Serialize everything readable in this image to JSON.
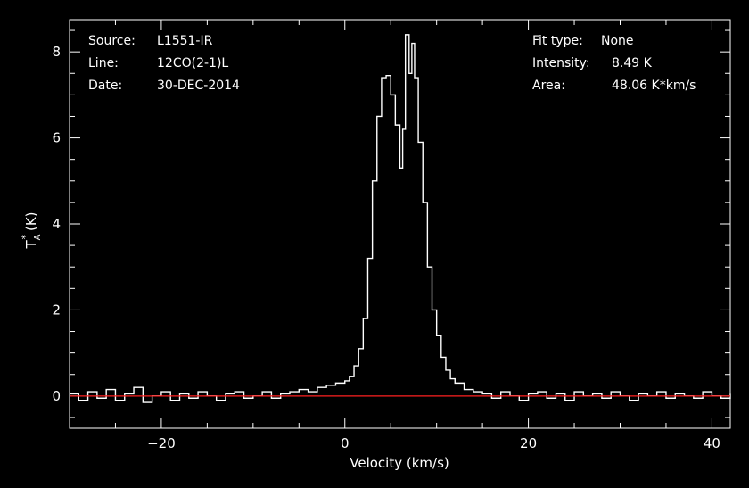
{
  "info": {
    "source_label": "Source:",
    "source_value": "L1551-IR",
    "line_label": "Line:",
    "line_value": "12CO(2-1)L",
    "date_label": "Date:",
    "date_value": "30-DEC-2014",
    "fit_label": "Fit type:",
    "fit_value": "None",
    "intensity_label": "Intensity:",
    "intensity_value": "8.49 K",
    "area_label": "Area:",
    "area_value": "48.06 K*km/s"
  },
  "chart_data": {
    "type": "line",
    "xlabel": "Velocity (km/s)",
    "ylabel_main": "T",
    "ylabel_sub": "A",
    "ylabel_sup": "*",
    "ylabel_unit": "(K)",
    "xlim": [
      -30,
      42
    ],
    "ylim": [
      -0.75,
      8.75
    ],
    "xticks": [
      -20,
      0,
      20,
      40
    ],
    "xtick_labels": [
      "−20",
      "0",
      "20",
      "40"
    ],
    "yticks": [
      0,
      2,
      4,
      6,
      8
    ],
    "ytick_labels": [
      "0",
      "2",
      "4",
      "6",
      "8"
    ],
    "series": [
      {
        "kind": "spectrum",
        "color": "#ffffff",
        "x": [
          -30.0,
          -29.0,
          -28.0,
          -27.0,
          -26.0,
          -25.0,
          -24.0,
          -23.0,
          -22.0,
          -21.0,
          -20.0,
          -19.0,
          -18.0,
          -17.0,
          -16.0,
          -15.0,
          -14.0,
          -13.0,
          -12.0,
          -11.0,
          -10.0,
          -9.0,
          -8.0,
          -7.0,
          -6.0,
          -5.0,
          -4.0,
          -3.0,
          -2.0,
          -1.0,
          0.0,
          0.5,
          1.0,
          1.5,
          2.0,
          2.5,
          3.0,
          3.5,
          4.0,
          4.5,
          5.0,
          5.5,
          6.0,
          6.3,
          6.6,
          7.0,
          7.3,
          7.6,
          8.0,
          8.5,
          9.0,
          9.5,
          10.0,
          10.5,
          11.0,
          11.5,
          12.0,
          13.0,
          14.0,
          15.0,
          16.0,
          17.0,
          18.0,
          19.0,
          20.0,
          21.0,
          22.0,
          23.0,
          24.0,
          25.0,
          26.0,
          27.0,
          28.0,
          29.0,
          30.0,
          31.0,
          32.0,
          33.0,
          34.0,
          35.0,
          36.0,
          37.0,
          38.0,
          39.0,
          40.0,
          41.0,
          42.0
        ],
        "y": [
          0.05,
          -0.1,
          0.1,
          -0.05,
          0.15,
          -0.1,
          0.05,
          0.2,
          -0.15,
          0.0,
          0.1,
          -0.1,
          0.05,
          -0.05,
          0.1,
          0.0,
          -0.1,
          0.05,
          0.1,
          -0.05,
          0.0,
          0.1,
          -0.05,
          0.05,
          0.1,
          0.15,
          0.1,
          0.2,
          0.25,
          0.3,
          0.35,
          0.45,
          0.7,
          1.1,
          1.8,
          3.2,
          5.0,
          6.5,
          7.4,
          7.45,
          7.0,
          6.3,
          5.3,
          6.2,
          8.4,
          7.5,
          8.2,
          7.4,
          5.9,
          4.5,
          3.0,
          2.0,
          1.4,
          0.9,
          0.6,
          0.4,
          0.3,
          0.15,
          0.1,
          0.05,
          -0.05,
          0.1,
          0.0,
          -0.1,
          0.05,
          0.1,
          -0.05,
          0.05,
          -0.1,
          0.1,
          0.0,
          0.05,
          -0.05,
          0.1,
          0.0,
          -0.1,
          0.05,
          0.0,
          0.1,
          -0.05,
          0.05,
          0.0,
          -0.05,
          0.1,
          0.0,
          -0.05,
          0.05
        ]
      },
      {
        "kind": "baseline",
        "color": "#ff2020",
        "x": [
          -30,
          42
        ],
        "y": [
          0,
          0
        ]
      }
    ],
    "grid": false,
    "legend": "none"
  }
}
